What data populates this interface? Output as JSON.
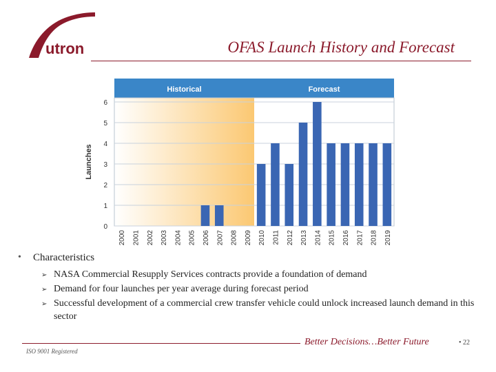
{
  "header": {
    "logo_text": "utron",
    "title": "OFAS Launch History and Forecast"
  },
  "chart_data": {
    "type": "bar",
    "title": "",
    "xlabel": "",
    "ylabel": "Launches",
    "ylim": [
      0,
      6
    ],
    "yticks": [
      "0",
      "1",
      "2",
      "3",
      "4",
      "5",
      "6"
    ],
    "grid": true,
    "categories": [
      "2000",
      "2001",
      "2002",
      "2003",
      "2004",
      "2005",
      "2006",
      "2007",
      "2008",
      "2009",
      "2010",
      "2011",
      "2012",
      "2013",
      "2014",
      "2015",
      "2016",
      "2017",
      "2018",
      "2019"
    ],
    "values": [
      0,
      0,
      0,
      0,
      0,
      0,
      1,
      1,
      0,
      0,
      3,
      4,
      3,
      5,
      6,
      4,
      4,
      4,
      4,
      4
    ],
    "periods": [
      {
        "label": "Historical",
        "range": [
          "2000",
          "2009"
        ]
      },
      {
        "label": "Forecast",
        "range": [
          "2010",
          "2019"
        ]
      }
    ],
    "colors": {
      "bar": "#3a66b3",
      "header": "#3a86c8",
      "historical_band": "#fbc872",
      "grid": "#c8d2dc"
    }
  },
  "bullets": {
    "main": "Characteristics",
    "main_marker": "•",
    "sub_marker": "➢",
    "items": [
      "NASA Commercial Resupply Services contracts provide a foundation of demand",
      "Demand for four launches per year average during forecast period",
      "Successful development of a commercial crew transfer vehicle could unlock increased launch demand in this sector"
    ]
  },
  "footer": {
    "iso": "ISO 9001 Registered",
    "slogan": "Better Decisions…Better Future",
    "page_sep": "•",
    "page_number": "22"
  }
}
